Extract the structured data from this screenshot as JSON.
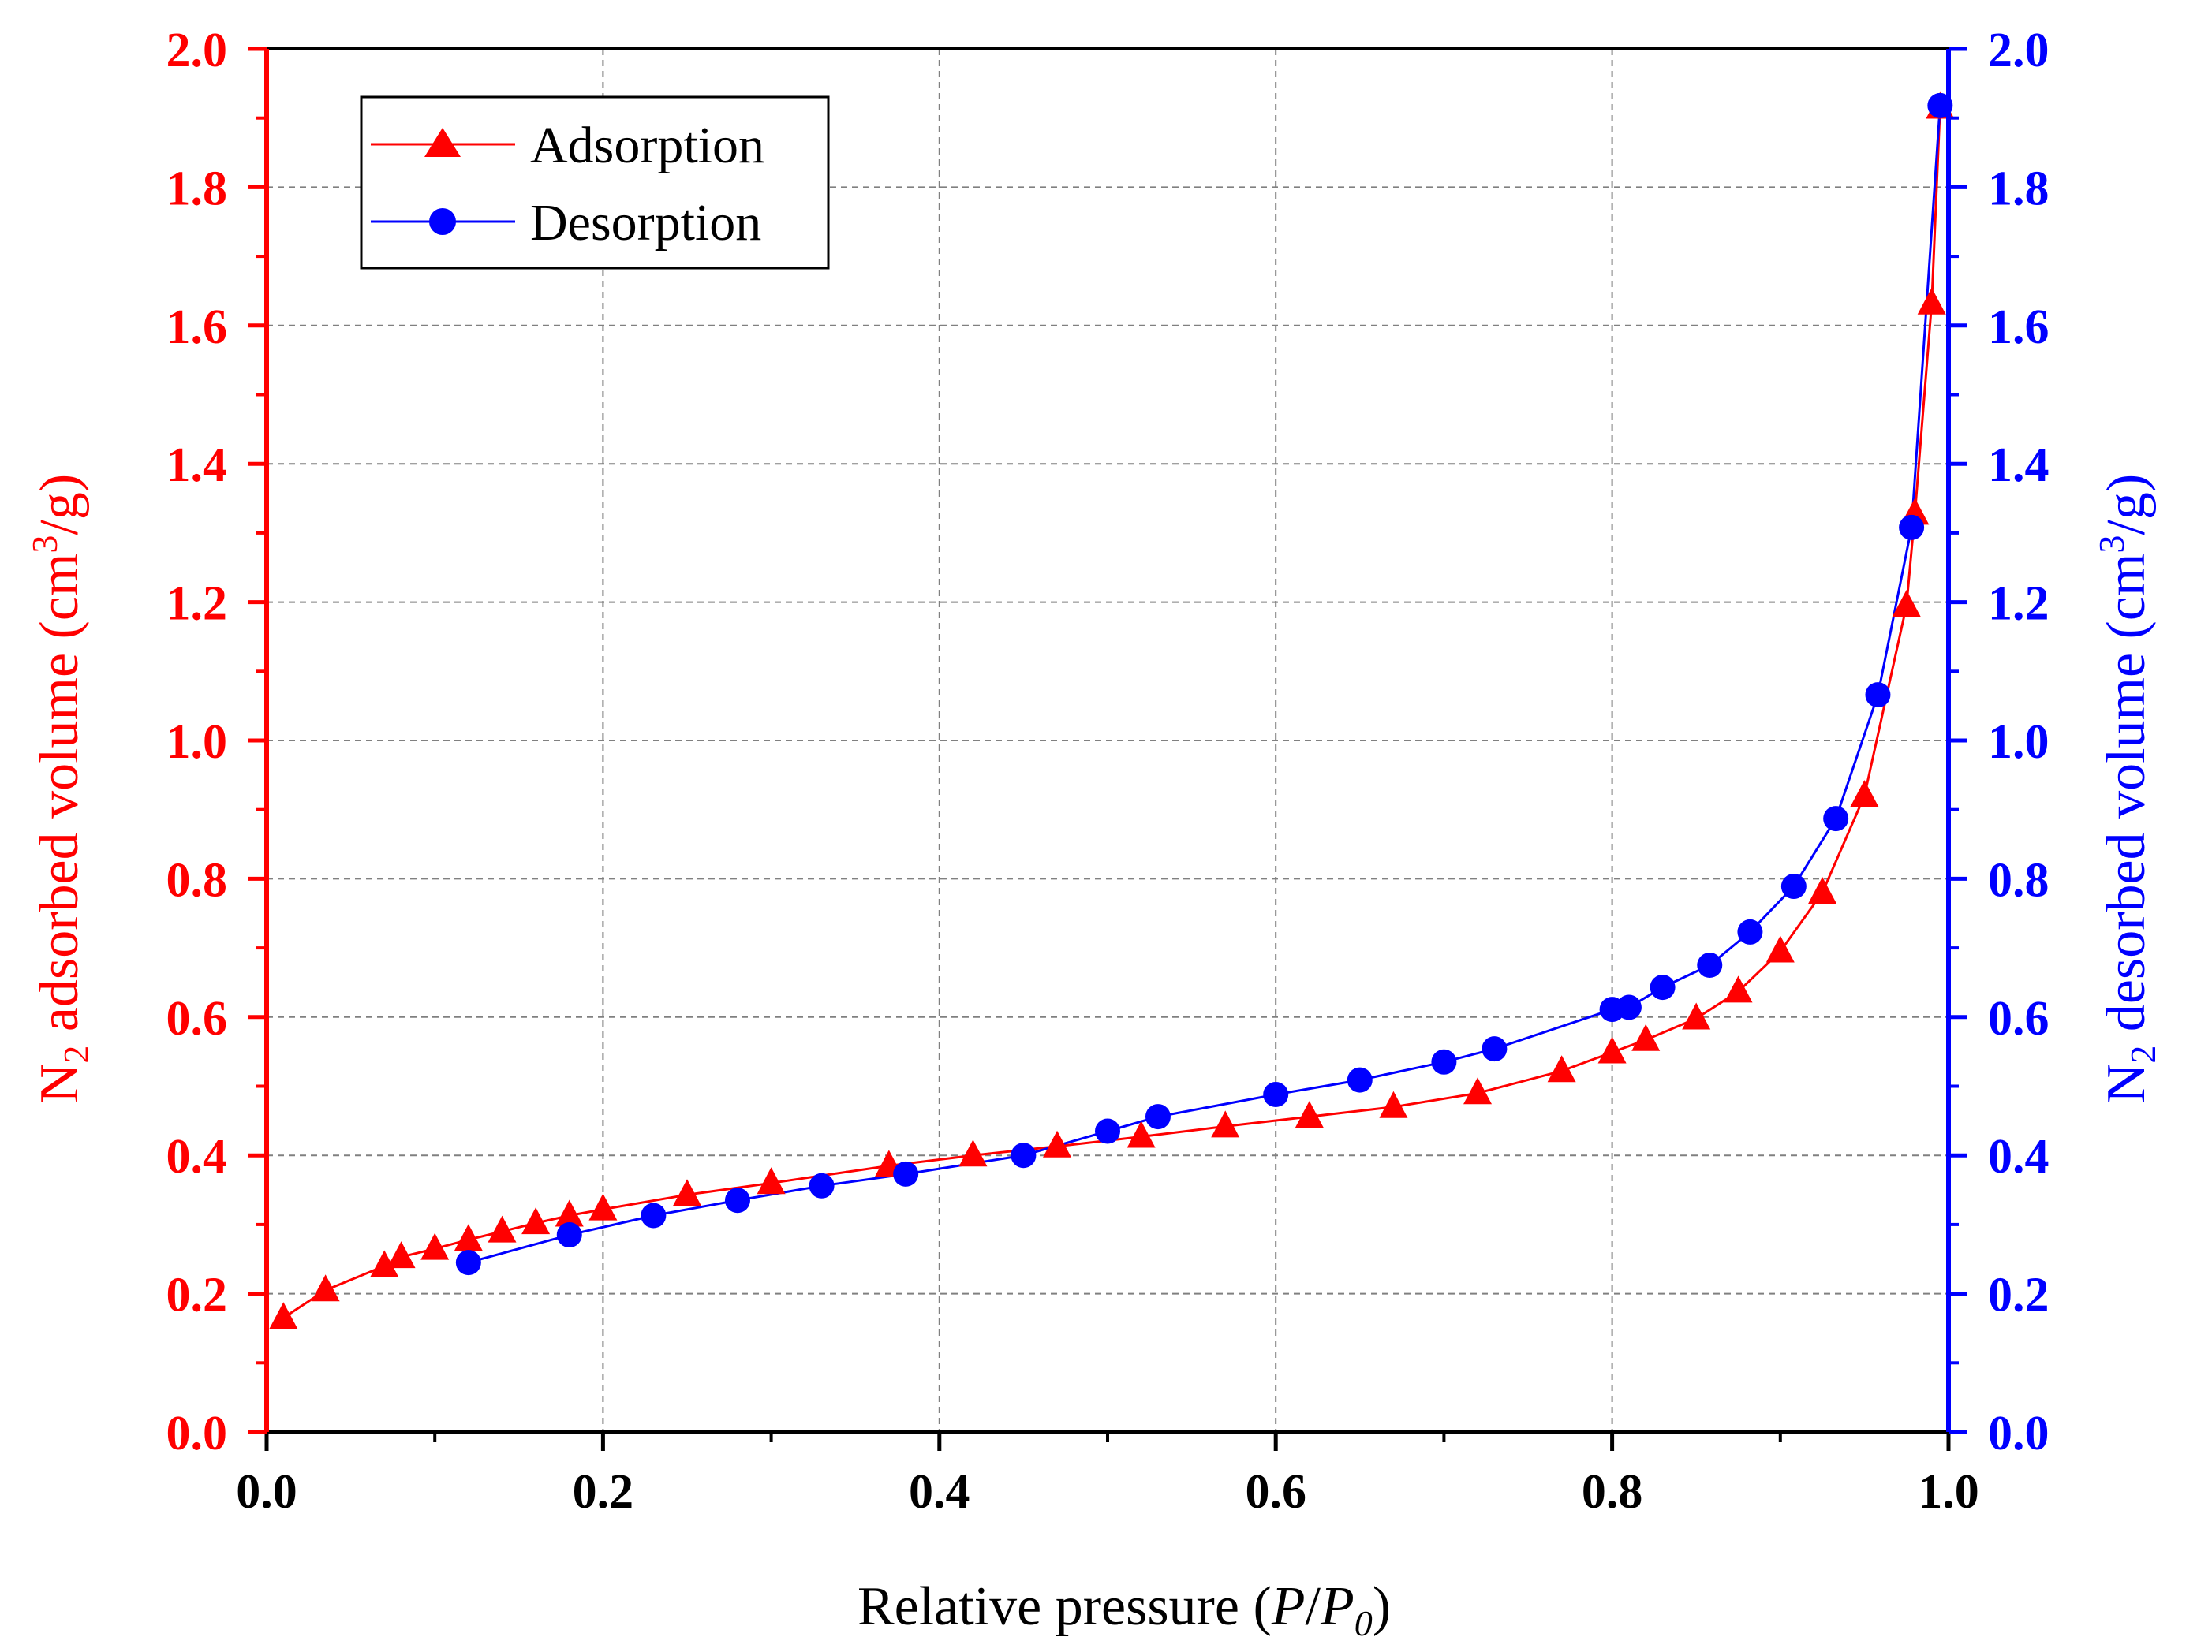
{
  "chart_data": {
    "type": "line",
    "x_axis": {
      "label_main": "Relative pressure (",
      "label_p": "P",
      "label_slash": "/",
      "label_p0": "P",
      "label_p0_sub": "0",
      "label_close": ")",
      "range": [
        0.0,
        1.0
      ],
      "ticks": [
        "0.0",
        "0.2",
        "0.4",
        "0.6",
        "0.8",
        "1.0"
      ],
      "tick_values": [
        0.0,
        0.2,
        0.4,
        0.6,
        0.8,
        1.0
      ]
    },
    "y_left": {
      "label_pre": "N",
      "label_sub": "2",
      "label_mid": " adsorbed volume (cm",
      "label_sup": "3",
      "label_post": "/g)",
      "range": [
        0.0,
        2.0
      ],
      "ticks": [
        "0.0",
        "0.2",
        "0.4",
        "0.6",
        "0.8",
        "1.0",
        "1.2",
        "1.4",
        "1.6",
        "1.8",
        "2.0"
      ],
      "tick_values": [
        0.0,
        0.2,
        0.4,
        0.6,
        0.8,
        1.0,
        1.2,
        1.4,
        1.6,
        1.8,
        2.0
      ],
      "color": "#ff0000"
    },
    "y_right": {
      "label_pre": "N",
      "label_sub": "2",
      "label_mid": " desorbed volume (cm",
      "label_sup": "3",
      "label_post": "/g)",
      "range": [
        0.0,
        2.0
      ],
      "ticks": [
        "0.0",
        "0.2",
        "0.4",
        "0.6",
        "0.8",
        "1.0",
        "1.2",
        "1.4",
        "1.6",
        "1.8",
        "2.0"
      ],
      "tick_values": [
        0.0,
        0.2,
        0.4,
        0.6,
        0.8,
        1.0,
        1.2,
        1.4,
        1.6,
        1.8,
        2.0
      ],
      "color": "#0000ff"
    },
    "grid": true,
    "legend_position": "top-left",
    "series": [
      {
        "name": "Adsorption",
        "color": "#ff0000",
        "marker": "triangle",
        "axis": "left",
        "x": [
          0.01,
          0.035,
          0.07,
          0.08,
          0.1,
          0.12,
          0.14,
          0.16,
          0.18,
          0.2,
          0.25,
          0.3,
          0.37,
          0.42,
          0.47,
          0.52,
          0.57,
          0.62,
          0.67,
          0.72,
          0.77,
          0.8,
          0.82,
          0.85,
          0.875,
          0.9,
          0.925,
          0.95,
          0.975,
          0.98,
          0.99,
          0.995
        ],
        "y": [
          0.165,
          0.205,
          0.24,
          0.253,
          0.265,
          0.278,
          0.29,
          0.302,
          0.313,
          0.322,
          0.343,
          0.36,
          0.385,
          0.4,
          0.413,
          0.427,
          0.442,
          0.456,
          0.47,
          0.49,
          0.522,
          0.549,
          0.567,
          0.598,
          0.637,
          0.695,
          0.78,
          0.92,
          1.195,
          1.328,
          1.632,
          1.915
        ]
      },
      {
        "name": "Desorption",
        "color": "#0000ff",
        "marker": "circle",
        "axis": "right",
        "x": [
          0.12,
          0.18,
          0.23,
          0.28,
          0.33,
          0.38,
          0.45,
          0.5,
          0.53,
          0.6,
          0.65,
          0.7,
          0.73,
          0.8,
          0.81,
          0.83,
          0.858,
          0.882,
          0.908,
          0.933,
          0.958,
          0.978,
          0.995
        ],
        "y": [
          0.245,
          0.285,
          0.313,
          0.335,
          0.356,
          0.373,
          0.4,
          0.435,
          0.456,
          0.488,
          0.509,
          0.535,
          0.554,
          0.611,
          0.614,
          0.643,
          0.675,
          0.723,
          0.789,
          0.887,
          1.066,
          1.308,
          1.918
        ]
      }
    ]
  }
}
